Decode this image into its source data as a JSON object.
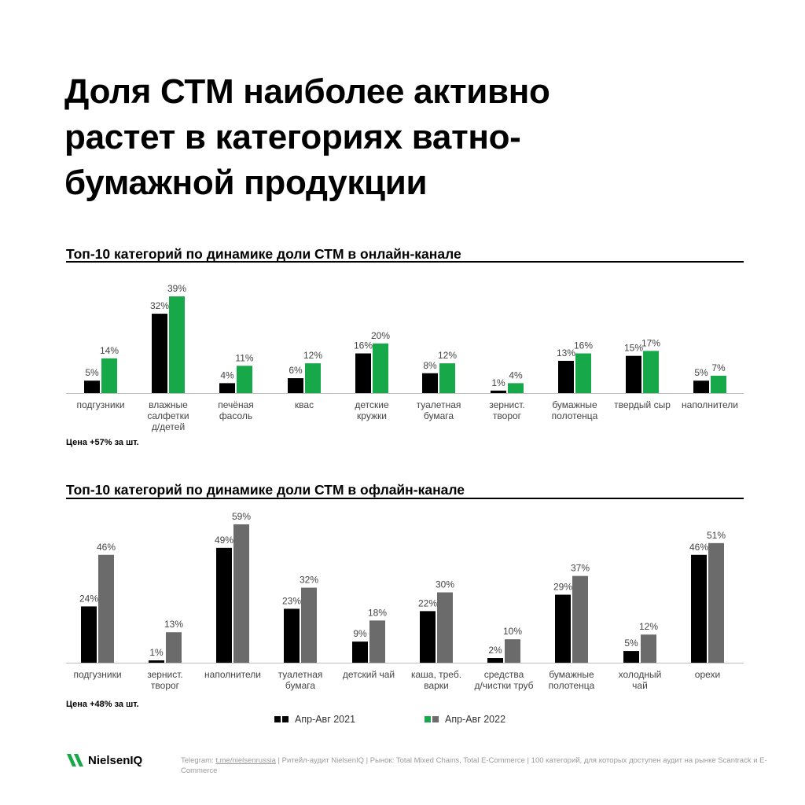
{
  "title_lines": [
    "Доля СТМ наиболее активно",
    "растет в категориях ватно-",
    "бумажной продукции"
  ],
  "colors": {
    "series_2021": "#000000",
    "series_2022_online": "#17a84a",
    "series_2022_offline": "#6b6b6b",
    "axis": "#bdbdbd",
    "brand": "#17a84a"
  },
  "legend": {
    "label_2021": "Апр-Авг 2021",
    "label_2022": "Апр-Авг 2022"
  },
  "footer": {
    "brand": "NielsenIQ",
    "telegram_label": "Telegram: ",
    "telegram_link": "t.me/nielsenrussia",
    "rest": " | Ритейл-аудит NielsenIQ | Рынок: Total Mixed Chains, Total E-Commerce | 100 категорий, для которых доступен аудит на рынке Scantrack и E-Commerce"
  },
  "chart_data": [
    {
      "type": "bar",
      "title": "Топ-10 категорий по динамике доли СТМ в онлайн-канале",
      "note": "Цена +57% за шт.",
      "ylim": [
        0,
        39
      ],
      "categories": [
        [
          "подгузники"
        ],
        [
          "влажные",
          "салфетки",
          "д/детей"
        ],
        [
          "печёная",
          "фасоль"
        ],
        [
          "квас"
        ],
        [
          "детские",
          "кружки"
        ],
        [
          "туалетная",
          "бумага"
        ],
        [
          "зернист.",
          "творог"
        ],
        [
          "бумажные",
          "полотенца"
        ],
        [
          "твердый сыр"
        ],
        [
          "наполнители"
        ]
      ],
      "series": [
        {
          "name": "Апр-Авг 2021",
          "values": [
            5,
            32,
            4,
            6,
            16,
            8,
            1,
            13,
            15,
            5
          ]
        },
        {
          "name": "Апр-Авг 2022",
          "values": [
            14,
            39,
            11,
            12,
            20,
            12,
            4,
            16,
            17,
            7
          ]
        }
      ]
    },
    {
      "type": "bar",
      "title": "Топ-10 категорий по динамике доли СТМ в офлайн-канале",
      "note": "Цена +48% за шт.",
      "ylim": [
        0,
        59
      ],
      "categories": [
        [
          "подгузники"
        ],
        [
          "зернист.",
          "творог"
        ],
        [
          "наполнители"
        ],
        [
          "туалетная",
          "бумага"
        ],
        [
          "детский чай"
        ],
        [
          "каша, треб.",
          "варки"
        ],
        [
          "средства",
          "д/чистки труб"
        ],
        [
          "бумажные",
          "полотенца"
        ],
        [
          "холодный",
          "чай"
        ],
        [
          "орехи"
        ]
      ],
      "series": [
        {
          "name": "Апр-Авг 2021",
          "values": [
            24,
            1,
            49,
            23,
            9,
            22,
            2,
            29,
            5,
            46
          ]
        },
        {
          "name": "Апр-Авг 2022",
          "values": [
            46,
            13,
            59,
            32,
            18,
            30,
            10,
            37,
            12,
            51
          ]
        }
      ]
    }
  ]
}
